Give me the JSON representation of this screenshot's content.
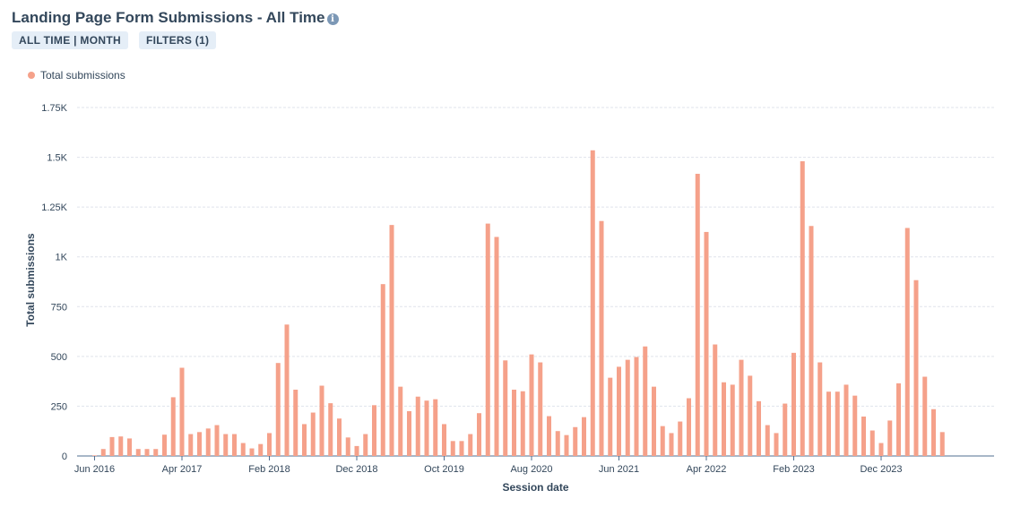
{
  "header": {
    "title": "Landing Page Form Submissions - All Time",
    "info_icon": "info-icon",
    "chips": [
      "ALL TIME | MONTH",
      "FILTERS (1)"
    ]
  },
  "chart_data": {
    "type": "bar",
    "xlabel": "Session date",
    "ylabel": "Total submissions",
    "ylim": [
      0,
      1750
    ],
    "yticks": [
      0,
      250,
      500,
      750,
      1000,
      1250,
      1500,
      1750
    ],
    "ytick_labels": [
      "0",
      "250",
      "500",
      "750",
      "1K",
      "1.25K",
      "1.5K",
      "1.75K"
    ],
    "xtick_labels": [
      "Jun 2016",
      "Apr 2017",
      "Feb 2018",
      "Dec 2018",
      "Oct 2019",
      "Aug 2020",
      "Jun 2021",
      "Apr 2022",
      "Feb 2023",
      "Dec 2023"
    ],
    "xtick_indices": [
      0,
      10,
      20,
      30,
      40,
      50,
      60,
      70,
      80,
      90
    ],
    "grid": true,
    "legend_position": "top-left",
    "series": [
      {
        "name": "Total submissions",
        "color": "#f5a18a",
        "values": [
          3,
          35,
          95,
          98,
          88,
          35,
          35,
          35,
          107,
          295,
          443,
          110,
          120,
          138,
          155,
          110,
          110,
          65,
          38,
          60,
          115,
          467,
          660,
          333,
          160,
          218,
          353,
          265,
          188,
          93,
          50,
          110,
          255,
          863,
          1160,
          348,
          225,
          298,
          278,
          285,
          160,
          75,
          75,
          110,
          215,
          1167,
          1100,
          480,
          333,
          325,
          510,
          470,
          200,
          125,
          105,
          145,
          195,
          1535,
          1180,
          393,
          448,
          483,
          497,
          550,
          348,
          150,
          115,
          173,
          290,
          1417,
          1125,
          560,
          370,
          358,
          483,
          403,
          275,
          155,
          115,
          263,
          518,
          1480,
          1155,
          470,
          323,
          323,
          358,
          303,
          198,
          128,
          65,
          178,
          365,
          1145,
          883,
          398,
          235,
          120
        ]
      }
    ]
  }
}
